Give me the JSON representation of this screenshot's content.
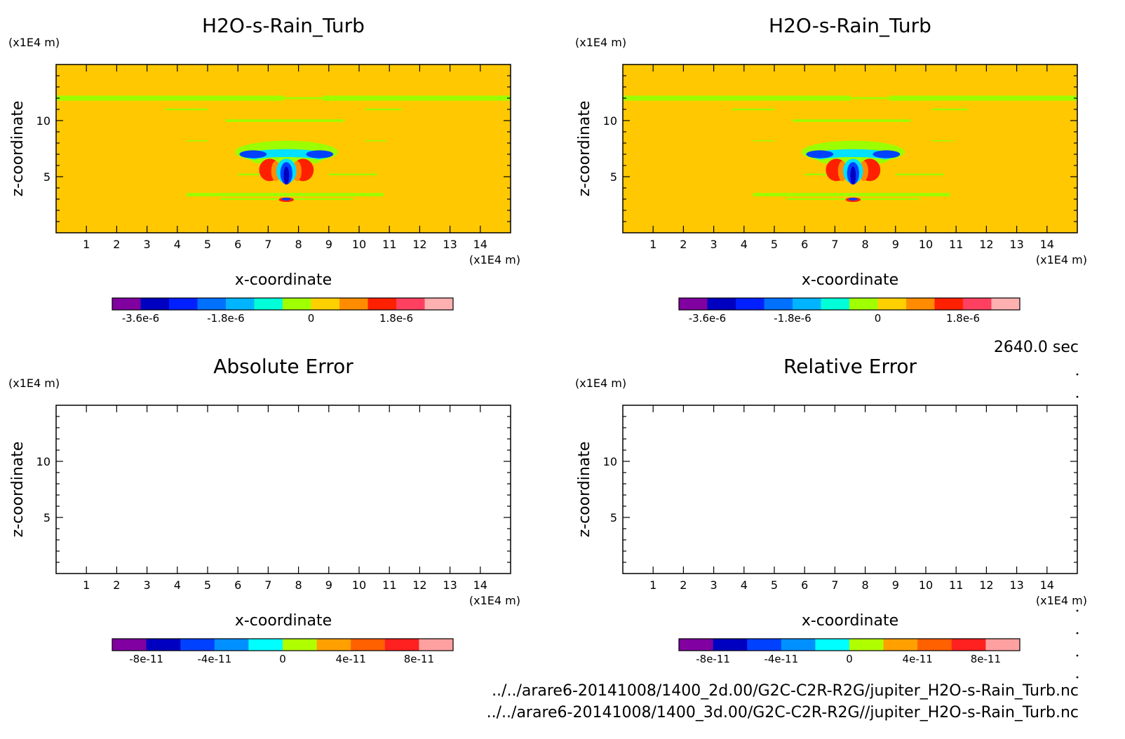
{
  "panels": [
    {
      "id": "top-left",
      "title": "H2O-s-Rain_Turb",
      "filled": true,
      "colorbar_id": "cb_top",
      "chart_data": {
        "type": "heatmap",
        "title": "H2O-s-Rain_Turb",
        "xlabel": "x-coordinate",
        "ylabel": "z-coordinate",
        "xunit": "(x1E4 m)",
        "yunit": "(x1E4 m)",
        "xlim": [
          0,
          15
        ],
        "ylim": [
          0,
          15
        ],
        "xticks": [
          1,
          2,
          3,
          4,
          5,
          6,
          7,
          8,
          9,
          10,
          11,
          12,
          13,
          14
        ],
        "yticks": [
          5,
          10
        ],
        "background_level": "0 to 6e-7"
      }
    },
    {
      "id": "top-right",
      "title": "H2O-s-Rain_Turb",
      "filled": true,
      "colorbar_id": "cb_top",
      "chart_data": {
        "type": "heatmap",
        "title": "H2O-s-Rain_Turb",
        "xlabel": "x-coordinate",
        "ylabel": "z-coordinate",
        "xunit": "(x1E4 m)",
        "yunit": "(x1E4 m)",
        "xlim": [
          0,
          15
        ],
        "ylim": [
          0,
          15
        ],
        "xticks": [
          1,
          2,
          3,
          4,
          5,
          6,
          7,
          8,
          9,
          10,
          11,
          12,
          13,
          14
        ],
        "yticks": [
          5,
          10
        ],
        "background_level": "0 to 6e-7"
      }
    },
    {
      "id": "bottom-left",
      "title": "Absolute Error",
      "filled": false,
      "colorbar_id": "cb_bottom",
      "chart_data": {
        "type": "heatmap",
        "title": "Absolute Error",
        "xlabel": "x-coordinate",
        "ylabel": "z-coordinate",
        "xunit": "(x1E4 m)",
        "yunit": "(x1E4 m)",
        "xlim": [
          0,
          15
        ],
        "ylim": [
          0,
          15
        ],
        "xticks": [
          1,
          2,
          3,
          4,
          5,
          6,
          7,
          8,
          9,
          10,
          11,
          12,
          13,
          14
        ],
        "yticks": [
          5,
          10
        ]
      }
    },
    {
      "id": "bottom-right",
      "title": "Relative Error",
      "filled": false,
      "colorbar_id": "cb_bottom",
      "chart_data": {
        "type": "heatmap",
        "title": "Relative Error",
        "xlabel": "x-coordinate",
        "ylabel": "z-coordinate",
        "xunit": "(x1E4 m)",
        "yunit": "(x1E4 m)",
        "xlim": [
          0,
          15
        ],
        "ylim": [
          0,
          15
        ],
        "xticks": [
          1,
          2,
          3,
          4,
          5,
          6,
          7,
          8,
          9,
          10,
          11,
          12,
          13,
          14
        ],
        "yticks": [
          5,
          10
        ]
      }
    }
  ],
  "colorbars": {
    "cb_top": {
      "colors": [
        "#8000a0",
        "#0000c0",
        "#0020ff",
        "#0070ff",
        "#00b4ff",
        "#00ffd8",
        "#a0ff00",
        "#ffd000",
        "#ff8c00",
        "#ff2000",
        "#ff4060",
        "#ffb0b0"
      ],
      "labels": [
        "-3.6e-6",
        "-1.8e-6",
        "0",
        "1.8e-6"
      ],
      "label_values": [
        -3.6e-06,
        -1.8e-06,
        0,
        1.8e-06
      ],
      "min": -4.2e-06,
      "max": 3e-06
    },
    "cb_bottom": {
      "colors": [
        "#8000a0",
        "#0000c0",
        "#0040ff",
        "#0090ff",
        "#00ffff",
        "#b0ff00",
        "#ffa000",
        "#ff6000",
        "#ff2020",
        "#ffa0a0"
      ],
      "labels": [
        "-8e-11",
        "-4e-11",
        "0",
        "4e-11",
        "8e-11"
      ],
      "label_values": [
        -8e-11,
        -4e-11,
        0,
        4e-11,
        8e-11
      ],
      "min": -1e-10,
      "max": 1e-10
    }
  },
  "field_colors": {
    "background": "#ffc800",
    "green": "#9cff00",
    "cyan": "#00e0ff",
    "blue": "#0040ff",
    "dark_blue": "#0000c0",
    "red": "#ff2000",
    "orange": "#ff8c00"
  },
  "time_label": "2640.0 sec",
  "file_paths": [
    "../../arare6-20141008/1400_2d.00/G2C-C2R-R2G/jupiter_H2O-s-Rain_Turb.nc",
    "../../arare6-20141008/1400_3d.00/G2C-C2R-R2G//jupiter_H2O-s-Rain_Turb.nc"
  ]
}
